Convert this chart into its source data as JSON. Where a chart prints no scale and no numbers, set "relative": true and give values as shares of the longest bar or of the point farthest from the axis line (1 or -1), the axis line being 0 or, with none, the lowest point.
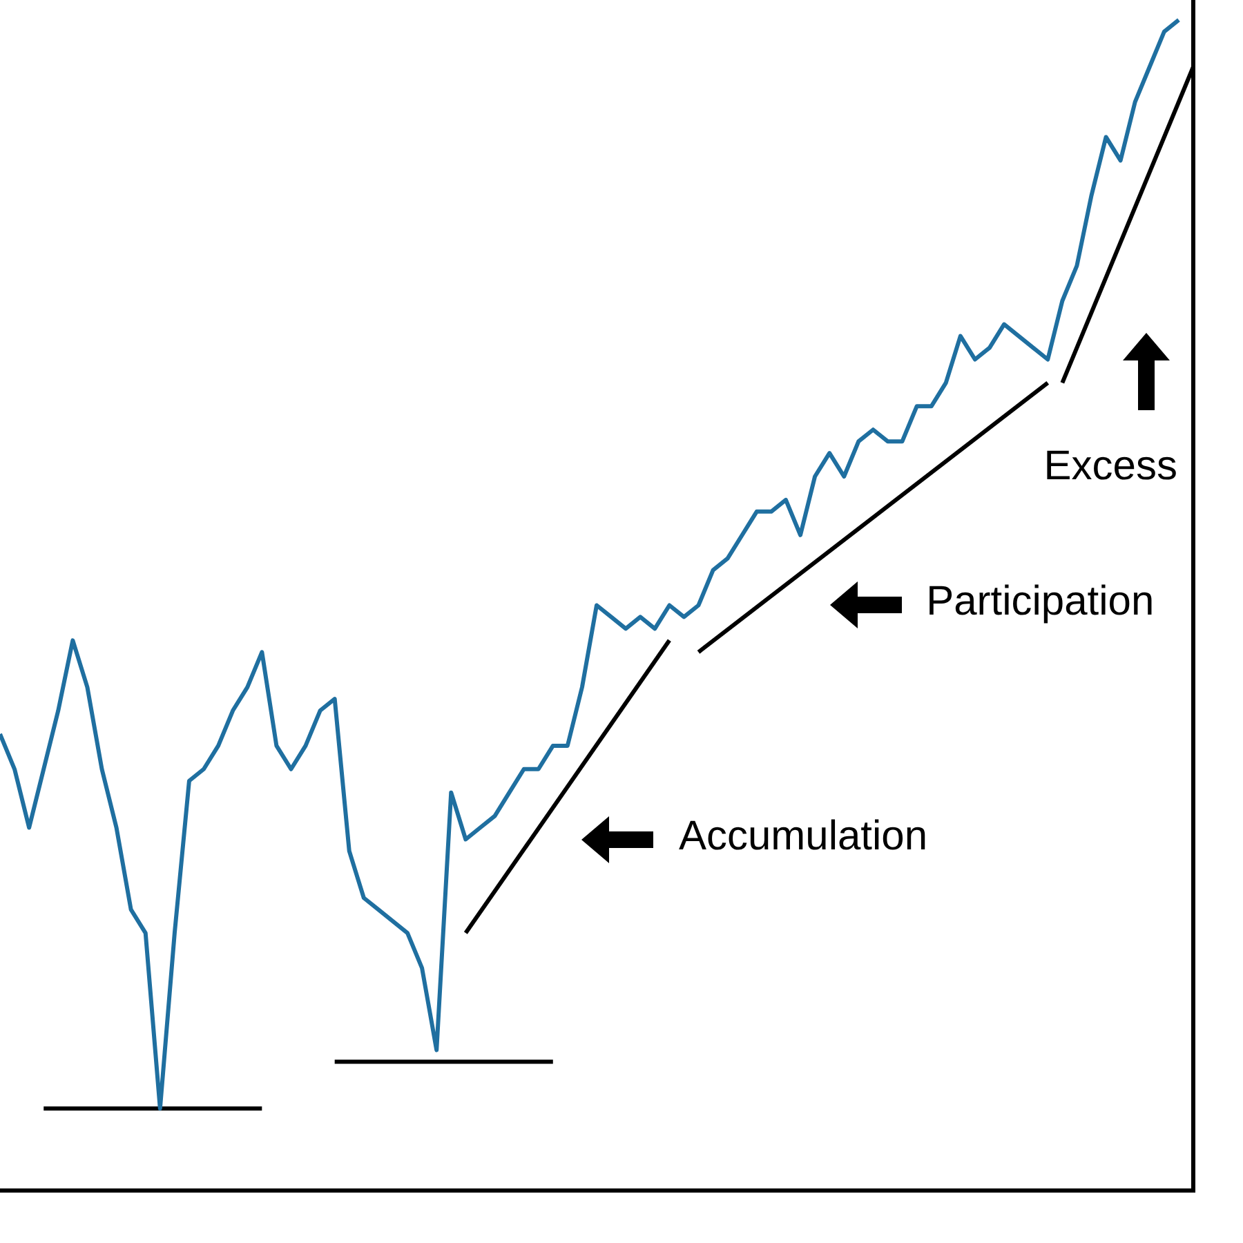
{
  "chart_data": {
    "type": "line",
    "relative": true,
    "grid": false,
    "legend": false,
    "tick_labels": false,
    "marker": "none",
    "categories": [
      null,
      null,
      null,
      null,
      null,
      null,
      null,
      null,
      null,
      null,
      null,
      null,
      null,
      null,
      null,
      null,
      null,
      null,
      null,
      null,
      null,
      null,
      null,
      null,
      null,
      null,
      null,
      null,
      null,
      null,
      null,
      null,
      null,
      null,
      null,
      null,
      null,
      null,
      null,
      null,
      null,
      null,
      null,
      null,
      null,
      null,
      null,
      null,
      null,
      null,
      null,
      null,
      null,
      null,
      null,
      null,
      null,
      null,
      null,
      null,
      null,
      null,
      null,
      null,
      null,
      null,
      null,
      null,
      null,
      null,
      null,
      null,
      null,
      null,
      null,
      null,
      null,
      null,
      null,
      null,
      null,
      null,
      null
    ],
    "series": [
      {
        "color": "#1f6fa0",
        "values": [
          0.39,
          0.36,
          0.31,
          0.36,
          0.41,
          0.47,
          0.43,
          0.36,
          0.31,
          0.24,
          0.22,
          0.07,
          0.22,
          0.35,
          0.36,
          0.38,
          0.41,
          0.43,
          0.46,
          0.38,
          0.36,
          0.38,
          0.41,
          0.42,
          0.29,
          0.25,
          0.24,
          0.23,
          0.22,
          0.19,
          0.12,
          0.34,
          0.3,
          0.31,
          0.32,
          0.34,
          0.36,
          0.36,
          0.38,
          0.38,
          0.43,
          0.5,
          0.49,
          0.48,
          0.49,
          0.48,
          0.5,
          0.49,
          0.5,
          0.53,
          0.54,
          0.56,
          0.58,
          0.58,
          0.59,
          0.56,
          0.61,
          0.63,
          0.61,
          0.64,
          0.65,
          0.64,
          0.64,
          0.67,
          0.67,
          0.69,
          0.73,
          0.71,
          0.72,
          0.74,
          0.73,
          0.72,
          0.71,
          0.76,
          0.79,
          0.85,
          0.9,
          0.88,
          0.93,
          0.96,
          0.99,
          1,
          null
        ]
      },
      {
        "color": "#000000",
        "values": [
          null,
          null,
          null,
          0.07,
          null,
          null,
          null,
          null,
          null,
          null,
          null,
          null,
          null,
          null,
          null,
          null,
          null,
          null,
          0.07,
          null,
          null,
          null,
          null,
          null,
          null,
          null,
          null,
          null,
          null,
          null,
          null,
          null,
          null,
          null,
          null,
          null,
          null,
          null,
          null,
          null,
          null,
          null,
          null,
          null,
          null,
          null,
          null,
          null,
          null,
          null,
          null,
          null,
          null,
          null,
          null,
          null,
          null,
          null,
          null,
          null,
          null,
          null,
          null,
          null,
          null,
          null,
          null,
          null,
          null,
          null,
          null,
          null,
          null,
          null,
          null,
          null,
          null,
          null,
          null,
          null,
          null,
          null,
          null
        ]
      },
      {
        "color": "#000000",
        "values": [
          null,
          null,
          null,
          null,
          null,
          null,
          null,
          null,
          null,
          null,
          null,
          null,
          null,
          null,
          null,
          null,
          null,
          null,
          null,
          null,
          null,
          null,
          null,
          0.11,
          null,
          null,
          null,
          null,
          null,
          null,
          null,
          null,
          null,
          null,
          null,
          null,
          null,
          null,
          0.11,
          null,
          null,
          null,
          null,
          null,
          null,
          null,
          null,
          null,
          null,
          null,
          null,
          null,
          null,
          null,
          null,
          null,
          null,
          null,
          null,
          null,
          null,
          null,
          null,
          null,
          null,
          null,
          null,
          null,
          null,
          null,
          null,
          null,
          null,
          null,
          null,
          null,
          null,
          null,
          null,
          null,
          null,
          null,
          null
        ]
      },
      {
        "color": "#000000",
        "values": [
          null,
          null,
          null,
          null,
          null,
          null,
          null,
          null,
          null,
          null,
          null,
          null,
          null,
          null,
          null,
          null,
          null,
          null,
          null,
          null,
          null,
          null,
          null,
          null,
          null,
          null,
          null,
          null,
          null,
          null,
          null,
          null,
          0.22,
          null,
          null,
          null,
          null,
          null,
          null,
          null,
          null,
          null,
          null,
          null,
          null,
          null,
          0.47,
          null,
          null,
          null,
          null,
          null,
          null,
          null,
          null,
          null,
          null,
          null,
          null,
          null,
          null,
          null,
          null,
          null,
          null,
          null,
          null,
          null,
          null,
          null,
          null,
          null,
          null,
          null,
          null,
          null,
          null,
          null,
          null,
          null,
          null,
          null,
          null
        ]
      },
      {
        "color": "#000000",
        "values": [
          null,
          null,
          null,
          null,
          null,
          null,
          null,
          null,
          null,
          null,
          null,
          null,
          null,
          null,
          null,
          null,
          null,
          null,
          null,
          null,
          null,
          null,
          null,
          null,
          null,
          null,
          null,
          null,
          null,
          null,
          null,
          null,
          null,
          null,
          null,
          null,
          null,
          null,
          null,
          null,
          null,
          null,
          null,
          null,
          null,
          null,
          null,
          null,
          0.46,
          null,
          null,
          null,
          null,
          null,
          null,
          null,
          null,
          null,
          null,
          null,
          null,
          null,
          null,
          null,
          null,
          null,
          null,
          null,
          null,
          null,
          null,
          null,
          0.69,
          null,
          null,
          null,
          null,
          null,
          null,
          null,
          null,
          null,
          null
        ]
      },
      {
        "color": "#000000",
        "values": [
          null,
          null,
          null,
          null,
          null,
          null,
          null,
          null,
          null,
          null,
          null,
          null,
          null,
          null,
          null,
          null,
          null,
          null,
          null,
          null,
          null,
          null,
          null,
          null,
          null,
          null,
          null,
          null,
          null,
          null,
          null,
          null,
          null,
          null,
          null,
          null,
          null,
          null,
          null,
          null,
          null,
          null,
          null,
          null,
          null,
          null,
          null,
          null,
          null,
          null,
          null,
          null,
          null,
          null,
          null,
          null,
          null,
          null,
          null,
          null,
          null,
          null,
          null,
          null,
          null,
          null,
          null,
          null,
          null,
          null,
          null,
          null,
          null,
          0.69,
          null,
          null,
          null,
          null,
          null,
          null,
          null,
          null,
          0.96
        ]
      }
    ],
    "annotations": [
      "Accumulation",
      "Participation",
      "Excess"
    ]
  }
}
